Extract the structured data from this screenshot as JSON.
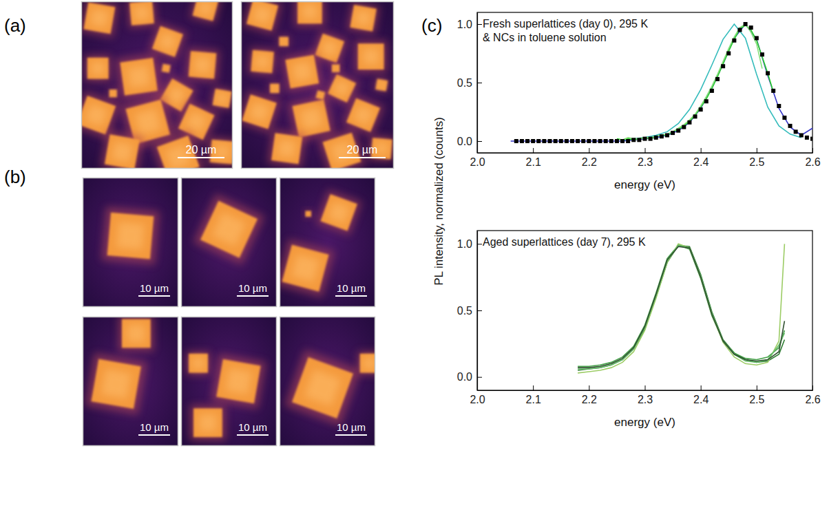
{
  "panels": [
    {
      "label": "(a)",
      "scale_bars": [
        "20 µm",
        "20 µm"
      ]
    },
    {
      "label": "(b)",
      "scale_bars": [
        "10 µm",
        "10 µm",
        "10 µm",
        "10 µm",
        "10 µm",
        "10 µm"
      ]
    },
    {
      "label": "(c)"
    }
  ],
  "chart_data": [
    {
      "type": "line",
      "annotations": [
        "Fresh superlattices (day 0), 295 K",
        "& NCs in toluene solution"
      ],
      "xlabel": "energy (eV)",
      "ylabel": "PL intensity, normalized (counts)",
      "xlim": [
        2.0,
        2.6
      ],
      "ylim": [
        -0.1,
        1.1
      ],
      "xticks": [
        {
          "value": 2.0,
          "label": "2.0"
        },
        {
          "value": 2.1,
          "label": "2.1"
        },
        {
          "value": 2.2,
          "label": "2.2"
        },
        {
          "value": 2.3,
          "label": "2.3"
        },
        {
          "value": 2.4,
          "label": "2.4"
        },
        {
          "value": 2.5,
          "label": "2.5"
        },
        {
          "value": 2.6,
          "label": "2.6"
        }
      ],
      "yticks": [
        {
          "value": 0,
          "label": "0.0"
        },
        {
          "value": 0.5,
          "label": "0.5"
        },
        {
          "value": 1,
          "label": "1.0"
        }
      ],
      "series": [
        {
          "color": "#3535c8",
          "x": [
            2.06,
            2.08,
            2.1,
            2.12,
            2.14,
            2.16,
            2.18,
            2.2,
            2.22,
            2.24,
            2.26,
            2.28,
            2.3,
            2.32,
            2.34,
            2.36,
            2.38,
            2.4,
            2.42,
            2.44,
            2.46,
            2.48,
            2.5,
            2.52,
            2.54,
            2.56,
            2.58,
            2.6
          ],
          "values": [
            0,
            0,
            0,
            0,
            0,
            0,
            0,
            0,
            0,
            0,
            0,
            0.01,
            0.02,
            0.03,
            0.05,
            0.09,
            0.16,
            0.28,
            0.45,
            0.66,
            0.88,
            1,
            0.87,
            0.56,
            0.28,
            0.12,
            0.05,
            0.11
          ]
        },
        {
          "color": "#33bbbb",
          "x": [
            2.26,
            2.28,
            2.3,
            2.32,
            2.34,
            2.36,
            2.38,
            2.4,
            2.42,
            2.44,
            2.46,
            2.48,
            2.5,
            2.52,
            2.54,
            2.56,
            2.58
          ],
          "values": [
            0.01,
            0.02,
            0.03,
            0.05,
            0.08,
            0.15,
            0.27,
            0.44,
            0.65,
            0.87,
            1,
            0.88,
            0.57,
            0.29,
            0.13,
            0.06,
            0.03
          ]
        },
        {
          "color": "#2bd12b",
          "x": [
            2.25,
            2.26,
            2.27,
            2.28,
            2.29,
            2.3,
            2.31,
            2.32,
            2.33,
            2.34,
            2.35,
            2.36,
            2.37,
            2.38,
            2.39,
            2.4,
            2.41,
            2.42,
            2.43,
            2.44,
            2.45,
            2.46,
            2.47,
            2.48,
            2.49,
            2.5,
            2.51,
            2.52,
            2.53
          ],
          "values": [
            0.02,
            0.01,
            0.02,
            0.01,
            0.02,
            0.03,
            0.02,
            0.04,
            0.05,
            0.05,
            0.08,
            0.1,
            0.13,
            0.17,
            0.22,
            0.29,
            0.36,
            0.45,
            0.55,
            0.66,
            0.77,
            0.87,
            0.96,
            0.99,
            0.95,
            0.86,
            0.72,
            0.58,
            0.42
          ]
        },
        {
          "color": "#86e07a",
          "x": [
            2.26,
            2.27,
            2.28,
            2.29,
            2.3,
            2.31,
            2.32,
            2.33,
            2.34,
            2.35,
            2.36,
            2.37,
            2.38,
            2.39,
            2.4,
            2.41,
            2.42,
            2.43,
            2.44,
            2.45,
            2.46,
            2.47,
            2.48,
            2.49,
            2.5,
            2.51
          ],
          "values": [
            0.01,
            0.03,
            0.02,
            0.02,
            0.03,
            0.03,
            0.04,
            0.05,
            0.06,
            0.08,
            0.11,
            0.14,
            0.18,
            0.23,
            0.3,
            0.38,
            0.47,
            0.57,
            0.68,
            0.79,
            0.89,
            0.97,
            1,
            0.93,
            0.83,
            0.62
          ]
        },
        {
          "type": "scatter",
          "marker": "square",
          "color": "#000000",
          "x": [
            2.07,
            2.08,
            2.09,
            2.1,
            2.11,
            2.12,
            2.13,
            2.14,
            2.15,
            2.16,
            2.17,
            2.18,
            2.19,
            2.2,
            2.21,
            2.22,
            2.23,
            2.24,
            2.25,
            2.26,
            2.27,
            2.28,
            2.29,
            2.3,
            2.31,
            2.32,
            2.33,
            2.34,
            2.35,
            2.36,
            2.37,
            2.38,
            2.39,
            2.4,
            2.41,
            2.42,
            2.43,
            2.44,
            2.45,
            2.46,
            2.47,
            2.48,
            2.49,
            2.5,
            2.51,
            2.52,
            2.53,
            2.54,
            2.55,
            2.56,
            2.57,
            2.58,
            2.59,
            2.6
          ],
          "values": [
            0,
            0,
            0,
            0,
            0,
            0,
            0,
            0,
            0,
            0,
            0,
            0,
            0,
            0,
            0,
            0,
            0,
            0,
            0,
            0,
            0,
            0.01,
            0.01,
            0.02,
            0.02,
            0.03,
            0.04,
            0.05,
            0.07,
            0.09,
            0.12,
            0.16,
            0.21,
            0.27,
            0.34,
            0.43,
            0.53,
            0.64,
            0.75,
            0.86,
            0.95,
            1,
            0.97,
            0.88,
            0.74,
            0.58,
            0.43,
            0.3,
            0.2,
            0.13,
            0.08,
            0.05,
            0.03,
            0.02
          ]
        }
      ]
    },
    {
      "type": "line",
      "annotations": [
        "Aged superlattices (day 7), 295 K"
      ],
      "xlabel": "energy (eV)",
      "xlim": [
        2.0,
        2.6
      ],
      "ylim": [
        -0.1,
        1.1
      ],
      "xticks": [
        {
          "value": 2.0,
          "label": "2.0"
        },
        {
          "value": 2.1,
          "label": "2.1"
        },
        {
          "value": 2.2,
          "label": "2.2"
        },
        {
          "value": 2.3,
          "label": "2.3"
        },
        {
          "value": 2.4,
          "label": "2.4"
        },
        {
          "value": 2.5,
          "label": "2.5"
        },
        {
          "value": 2.6,
          "label": "2.6"
        }
      ],
      "yticks": [
        {
          "value": 0,
          "label": "0.0"
        },
        {
          "value": 0.5,
          "label": "0.5"
        },
        {
          "value": 1,
          "label": "1.0"
        }
      ],
      "series": [
        {
          "color": "#2e7d32",
          "x": [
            2.18,
            2.2,
            2.22,
            2.24,
            2.26,
            2.28,
            2.3,
            2.32,
            2.34,
            2.36,
            2.38,
            2.4,
            2.42,
            2.44,
            2.46,
            2.48,
            2.5,
            2.52,
            2.54,
            2.55
          ],
          "values": [
            0.05,
            0.06,
            0.07,
            0.09,
            0.13,
            0.21,
            0.36,
            0.6,
            0.86,
            0.99,
            0.98,
            0.77,
            0.49,
            0.28,
            0.18,
            0.13,
            0.11,
            0.12,
            0.17,
            0.28
          ]
        },
        {
          "color": "#43a047",
          "x": [
            2.18,
            2.2,
            2.22,
            2.24,
            2.26,
            2.28,
            2.3,
            2.32,
            2.34,
            2.36,
            2.38,
            2.4,
            2.42,
            2.44,
            2.46,
            2.48,
            2.5,
            2.52,
            2.54,
            2.55
          ],
          "values": [
            0.08,
            0.08,
            0.09,
            0.11,
            0.15,
            0.23,
            0.39,
            0.63,
            0.89,
            0.99,
            0.96,
            0.74,
            0.46,
            0.27,
            0.18,
            0.14,
            0.13,
            0.15,
            0.22,
            0.35
          ]
        },
        {
          "color": "#9ccc65",
          "x": [
            2.18,
            2.2,
            2.22,
            2.24,
            2.26,
            2.28,
            2.3,
            2.32,
            2.34,
            2.36,
            2.38,
            2.4,
            2.42,
            2.44,
            2.46,
            2.48,
            2.5,
            2.52,
            2.54,
            2.55
          ],
          "values": [
            0.03,
            0.04,
            0.05,
            0.07,
            0.11,
            0.19,
            0.35,
            0.59,
            0.86,
            1,
            0.97,
            0.75,
            0.47,
            0.26,
            0.15,
            0.1,
            0.09,
            0.11,
            0.27,
            1
          ]
        },
        {
          "color": "#66bb6a",
          "x": [
            2.18,
            2.2,
            2.22,
            2.24,
            2.26,
            2.28,
            2.3,
            2.32,
            2.34,
            2.36,
            2.38,
            2.4,
            2.42,
            2.44,
            2.46,
            2.48,
            2.5,
            2.52,
            2.54,
            2.55
          ],
          "values": [
            0.06,
            0.06,
            0.07,
            0.09,
            0.13,
            0.21,
            0.37,
            0.61,
            0.87,
            0.99,
            0.97,
            0.76,
            0.48,
            0.27,
            0.17,
            0.12,
            0.11,
            0.13,
            0.24,
            0.33
          ]
        },
        {
          "color": "#2f4f2f",
          "x": [
            2.18,
            2.2,
            2.22,
            2.24,
            2.26,
            2.28,
            2.3,
            2.32,
            2.34,
            2.36,
            2.38,
            2.4,
            2.42,
            2.44,
            2.46,
            2.48,
            2.5,
            2.52,
            2.54,
            2.55
          ],
          "values": [
            0.07,
            0.07,
            0.08,
            0.1,
            0.14,
            0.22,
            0.38,
            0.62,
            0.88,
            0.98,
            0.97,
            0.75,
            0.47,
            0.27,
            0.17,
            0.13,
            0.12,
            0.13,
            0.19,
            0.42
          ]
        }
      ]
    }
  ]
}
